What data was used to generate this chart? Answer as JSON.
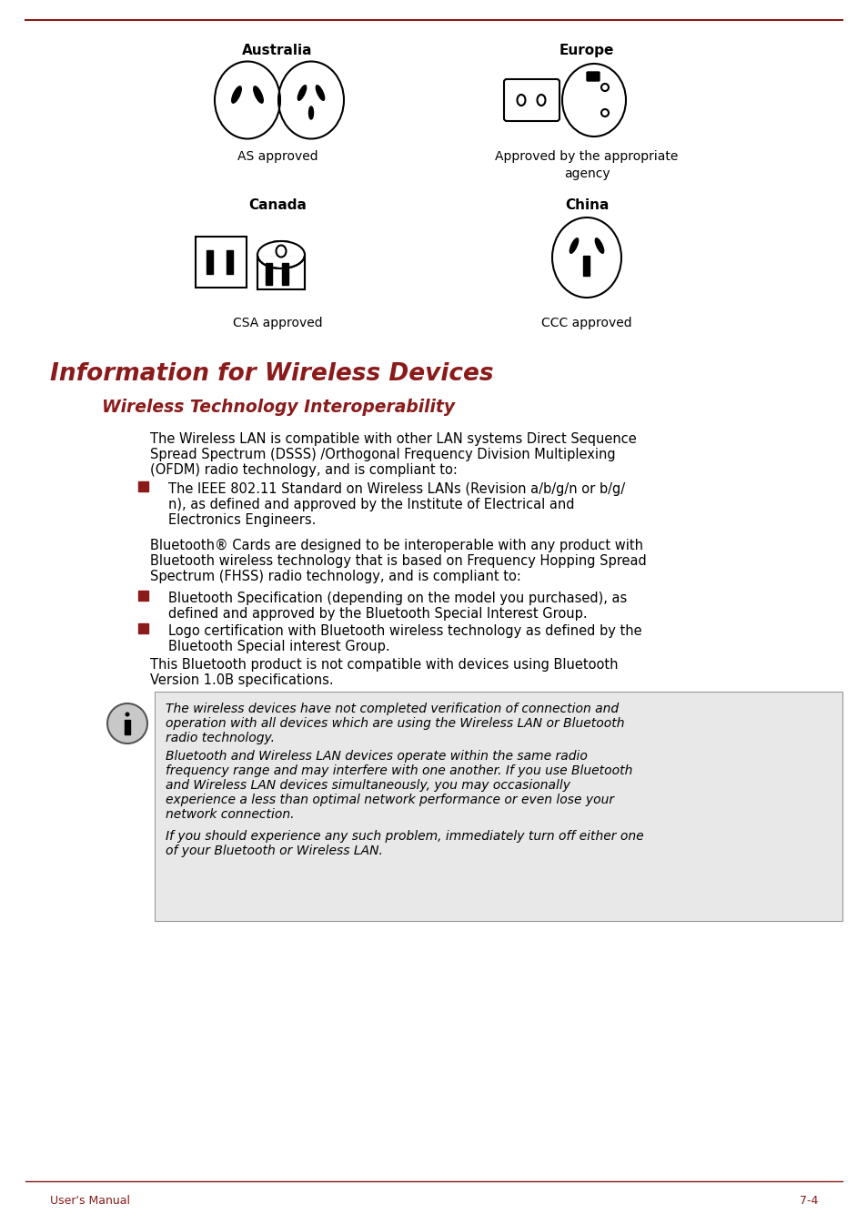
{
  "bg_color": "#ffffff",
  "top_line_color": "#8B1A1A",
  "title1": "Information for Wireless Devices",
  "title2": "Wireless Technology Interoperability",
  "title1_color": "#8B1A1A",
  "title2_color": "#8B1A1A",
  "footer_text_left": "User's Manual",
  "footer_text_right": "7-4",
  "footer_color": "#8B1A1A",
  "note_bg": "#E8E8E8",
  "label_australia": "Australia",
  "label_europe": "Europe",
  "label_canada": "Canada",
  "label_china": "China",
  "label_as": "AS approved",
  "label_eu": "Approved by the appropriate\nagency",
  "label_csa": "CSA approved",
  "label_ccc": "CCC approved",
  "p1_lines": [
    "The Wireless LAN is compatible with other LAN systems Direct Sequence",
    "Spread Spectrum (DSSS) /Orthogonal Frequency Division Multiplexing",
    "(OFDM) radio technology, and is compliant to:"
  ],
  "b1_lines": [
    "The IEEE 802.11 Standard on Wireless LANs (Revision a/b/g/n or b/g/",
    "n), as defined and approved by the Institute of Electrical and",
    "Electronics Engineers."
  ],
  "p2_lines": [
    "Bluetooth® Cards are designed to be interoperable with any product with",
    "Bluetooth wireless technology that is based on Frequency Hopping Spread",
    "Spectrum (FHSS) radio technology, and is compliant to:"
  ],
  "b2_lines": [
    "Bluetooth Specification (depending on the model you purchased), as",
    "defined and approved by the Bluetooth Special Interest Group."
  ],
  "b3_lines": [
    "Logo certification with Bluetooth wireless technology as defined by the",
    "Bluetooth Special interest Group."
  ],
  "p3_lines": [
    "This Bluetooth product is not compatible with devices using Bluetooth",
    "Version 1.0B specifications."
  ],
  "note1_lines": [
    "The wireless devices have not completed verification of connection and",
    "operation with all devices which are using the Wireless LAN or Bluetooth",
    "radio technology."
  ],
  "note2_lines": [
    "Bluetooth and Wireless LAN devices operate within the same radio",
    "frequency range and may interfere with one another. If you use Bluetooth",
    "and Wireless LAN devices simultaneously, you may occasionally",
    "experience a less than optimal network performance or even lose your",
    "network connection."
  ],
  "note3_lines": [
    "If you should experience any such problem, immediately turn off either one",
    "of your Bluetooth or Wireless LAN."
  ]
}
